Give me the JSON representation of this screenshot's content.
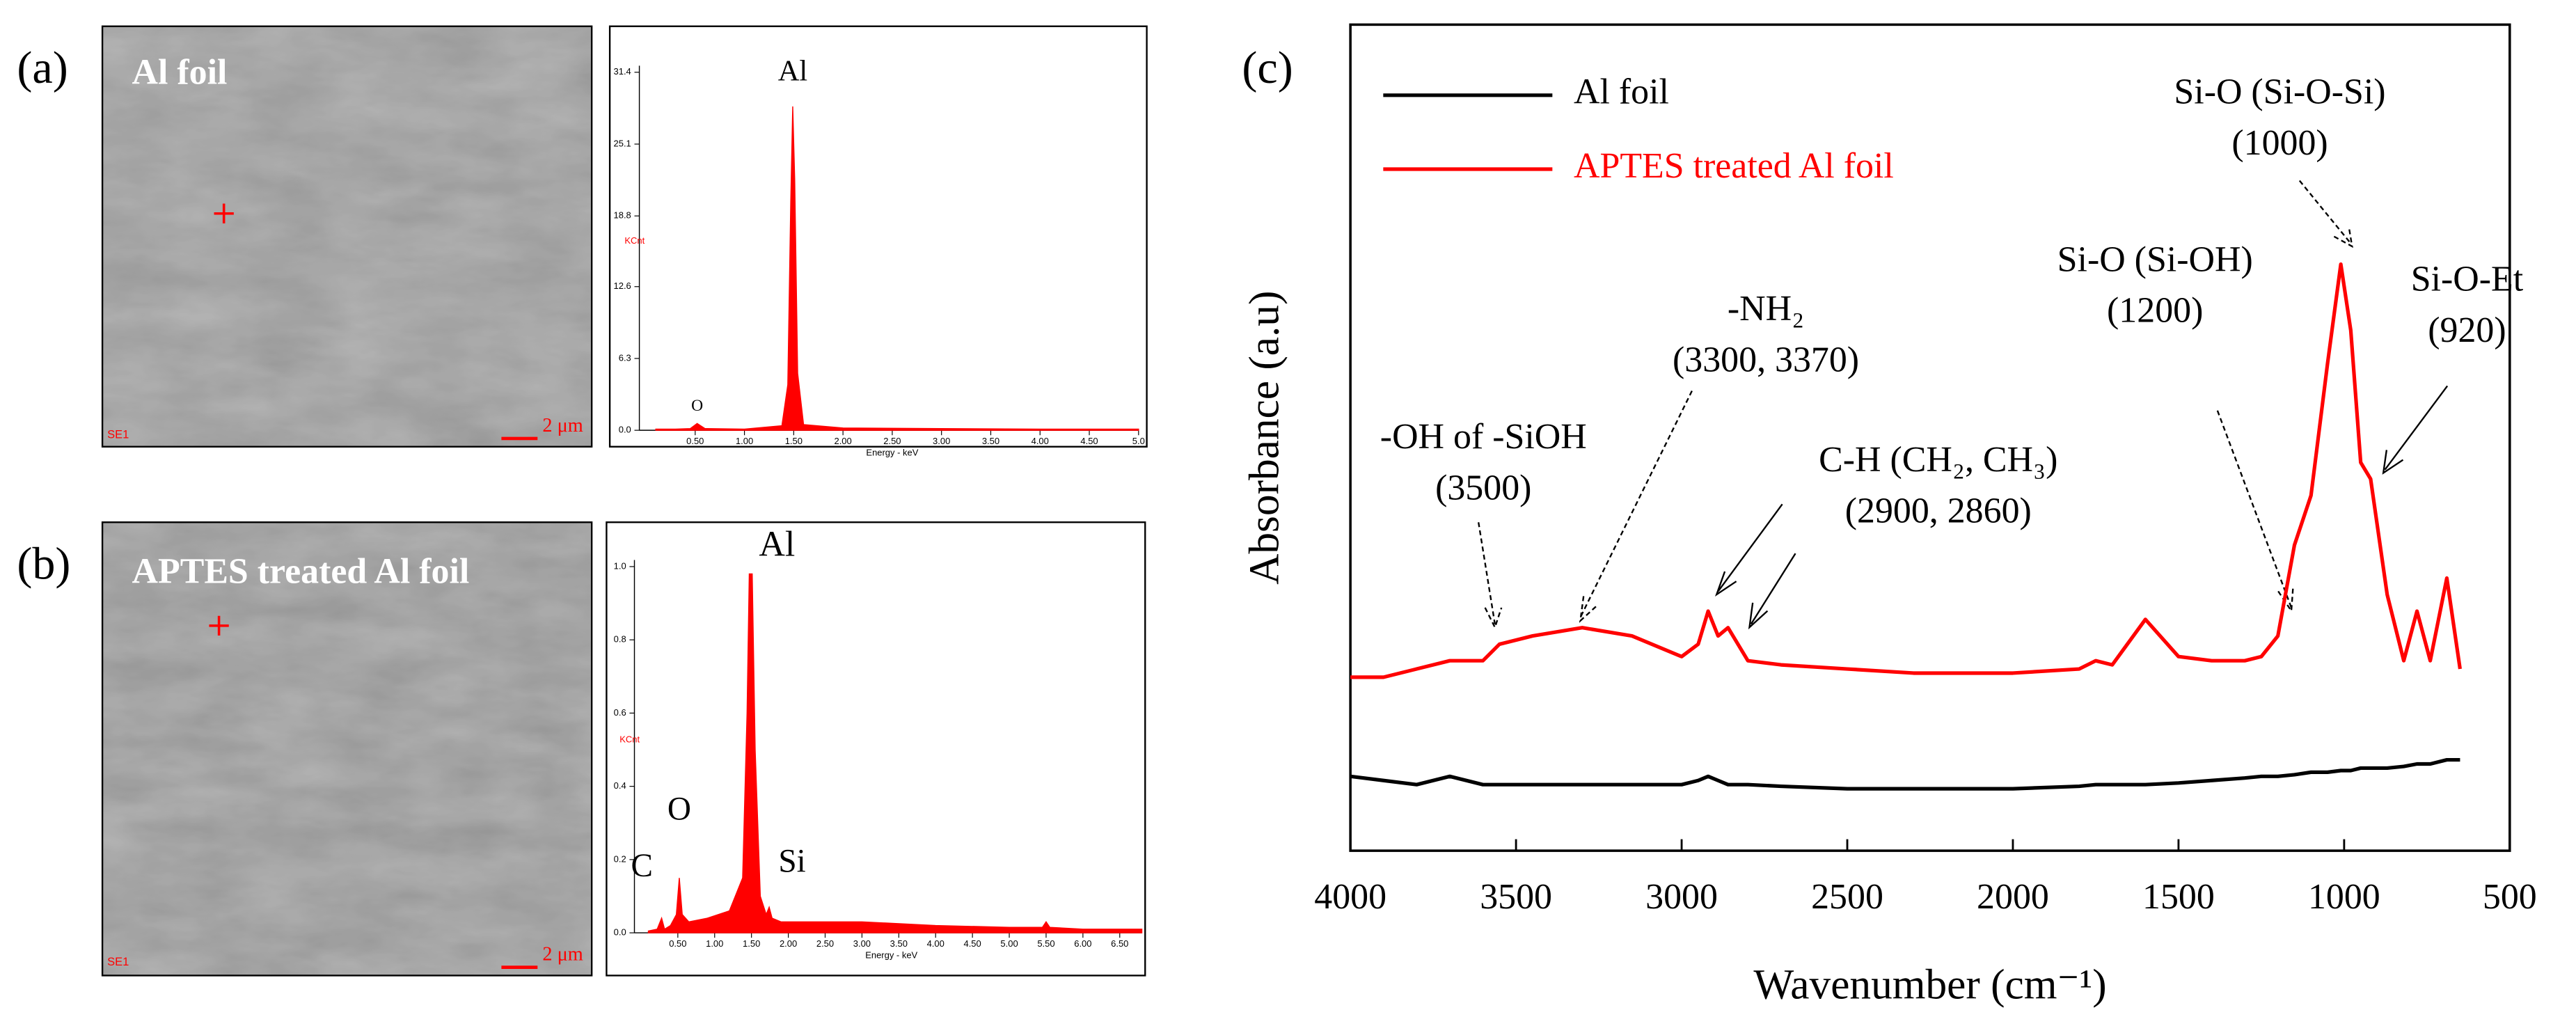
{
  "panels": [
    {
      "label": "(a)",
      "caption": "Al foil",
      "scale": "2 μm",
      "detector": "SE1"
    },
    {
      "label": "(b)",
      "caption": "APTES treated Al foil",
      "scale": "2 μm",
      "detector": "SE1"
    },
    {
      "label": "(c)"
    }
  ],
  "chart_data": [
    {
      "type": "spectrum",
      "xlabel": "Energy - keV",
      "ylabel": "KCnt",
      "color": "#ff0000",
      "x": [
        0.1,
        0.3,
        0.45,
        0.52,
        0.6,
        1.0,
        1.38,
        1.44,
        1.47,
        1.49,
        1.51,
        1.54,
        1.6,
        2.0,
        3.0,
        4.0,
        5.0
      ],
      "values": [
        0.1,
        0.1,
        0.15,
        0.6,
        0.15,
        0.1,
        0.4,
        4,
        20,
        28.4,
        22,
        5,
        0.5,
        0.2,
        0.15,
        0.1,
        0.1
      ],
      "xlim": [
        0,
        5.0
      ],
      "xticks": [
        {
          "value": 0.5,
          "label": "0.50"
        },
        {
          "value": 1,
          "label": "1.00"
        },
        {
          "value": 1.5,
          "label": "1.50"
        },
        {
          "value": 2,
          "label": "2.00"
        },
        {
          "value": 2.5,
          "label": "2.50"
        },
        {
          "value": 3,
          "label": "3.00"
        },
        {
          "value": 3.5,
          "label": "3.50"
        },
        {
          "value": 4,
          "label": "4.00"
        },
        {
          "value": 4.5,
          "label": "4.50"
        },
        {
          "value": 5,
          "label": "5.0"
        }
      ],
      "ylim": [
        0,
        31.4
      ],
      "yticks": [
        {
          "value": 0,
          "label": "0.0"
        },
        6.3,
        12.6,
        18.8,
        25.1,
        31.4
      ],
      "annotations": [
        {
          "text": "Al",
          "x": 1.49
        },
        {
          "text": "O",
          "x": 0.52
        }
      ]
    },
    {
      "type": "spectrum",
      "xlabel": "Energy - keV",
      "ylabel": "KCnt",
      "color": "#ff0000",
      "x": [
        0.1,
        0.22,
        0.28,
        0.32,
        0.4,
        0.48,
        0.52,
        0.56,
        0.65,
        0.9,
        1.2,
        1.38,
        1.44,
        1.47,
        1.49,
        1.51,
        1.55,
        1.62,
        1.7,
        1.74,
        1.78,
        1.9,
        2.5,
        3.0,
        4.0,
        5.0,
        5.45,
        5.5,
        5.55,
        6.0,
        6.8
      ],
      "values": [
        0.005,
        0.01,
        0.04,
        0.01,
        0.02,
        0.05,
        0.15,
        0.05,
        0.03,
        0.04,
        0.06,
        0.15,
        0.6,
        0.98,
        0.98,
        0.98,
        0.5,
        0.1,
        0.05,
        0.07,
        0.04,
        0.03,
        0.03,
        0.03,
        0.02,
        0.015,
        0.015,
        0.03,
        0.015,
        0.01,
        0.01
      ],
      "xlim": [
        0,
        6.8
      ],
      "xticks": [
        {
          "value": 0.5,
          "label": "0.50"
        },
        {
          "value": 1,
          "label": "1.00"
        },
        {
          "value": 1.5,
          "label": "1.50"
        },
        {
          "value": 2,
          "label": "2.00"
        },
        {
          "value": 2.5,
          "label": "2.50"
        },
        {
          "value": 3,
          "label": "3.00"
        },
        {
          "value": 3.5,
          "label": "3.50"
        },
        {
          "value": 4,
          "label": "4.00"
        },
        {
          "value": 4.5,
          "label": "4.50"
        },
        {
          "value": 5,
          "label": "5.00"
        },
        {
          "value": 5.5,
          "label": "5.50"
        },
        {
          "value": 6,
          "label": "6.00"
        },
        {
          "value": 6.5,
          "label": "6.50"
        }
      ],
      "ylim": [
        0,
        1.0
      ],
      "yticks": [
        {
          "value": 0,
          "label": "0.0"
        },
        0.2,
        0.4,
        0.6,
        0.8,
        {
          "value": 1,
          "label": "1.0"
        }
      ],
      "annotations": [
        {
          "text": "Al",
          "x": 1.49
        },
        {
          "text": "O",
          "x": 0.52
        },
        {
          "text": "C",
          "x": 0.28
        },
        {
          "text": "Si",
          "x": 1.74
        }
      ]
    },
    {
      "type": "line",
      "xlabel": "Wavenumber (cm⁻¹)",
      "ylabel": "Absorbance (a.u)",
      "x": [
        4000,
        3900,
        3800,
        3700,
        3600,
        3550,
        3450,
        3300,
        3150,
        3000,
        2950,
        2920,
        2890,
        2860,
        2800,
        2700,
        2500,
        2300,
        2000,
        1800,
        1750,
        1700,
        1600,
        1500,
        1400,
        1300,
        1250,
        1200,
        1150,
        1100,
        1050,
        1010,
        980,
        950,
        920,
        870,
        820,
        780,
        740,
        690,
        650
      ],
      "series": [
        {
          "name": "Al foil",
          "color": "#000000",
          "values": [
            0.09,
            0.085,
            0.08,
            0.09,
            0.08,
            0.08,
            0.08,
            0.08,
            0.08,
            0.08,
            0.085,
            0.09,
            0.085,
            0.08,
            0.08,
            0.078,
            0.075,
            0.075,
            0.075,
            0.078,
            0.08,
            0.08,
            0.08,
            0.082,
            0.085,
            0.088,
            0.09,
            0.09,
            0.092,
            0.095,
            0.095,
            0.097,
            0.097,
            0.1,
            0.1,
            0.1,
            0.102,
            0.105,
            0.105,
            0.11,
            0.11
          ]
        },
        {
          "name": "APTES treated Al foil",
          "color": "#ff0000",
          "values": [
            0.21,
            0.21,
            0.22,
            0.23,
            0.23,
            0.25,
            0.26,
            0.27,
            0.26,
            0.235,
            0.25,
            0.29,
            0.26,
            0.27,
            0.23,
            0.225,
            0.22,
            0.215,
            0.215,
            0.22,
            0.23,
            0.225,
            0.28,
            0.235,
            0.23,
            0.23,
            0.235,
            0.26,
            0.37,
            0.43,
            0.59,
            0.71,
            0.63,
            0.47,
            0.45,
            0.31,
            0.23,
            0.29,
            0.23,
            0.33,
            0.22
          ]
        }
      ],
      "xlim": [
        4000,
        500
      ],
      "xticks": [
        4000,
        3500,
        3000,
        2500,
        2000,
        1500,
        1000,
        500
      ],
      "ylim": [
        0,
        1
      ],
      "legend": "upper left",
      "annotations": [
        {
          "lines": [
            "-OH of -SiOH",
            "(3500)"
          ]
        },
        {
          "lines": [
            "-NH₂",
            "(3300, 3370)"
          ]
        },
        {
          "lines": [
            "C-H (CH₂, CH₃)",
            "(2900, 2860)"
          ]
        },
        {
          "lines": [
            "Si-O (Si-OH)",
            "(1200)"
          ]
        },
        {
          "lines": [
            "Si-O (Si-O-Si)",
            "(1000)"
          ]
        },
        {
          "lines": [
            "Si-O-Et",
            "(920)"
          ]
        }
      ]
    }
  ]
}
